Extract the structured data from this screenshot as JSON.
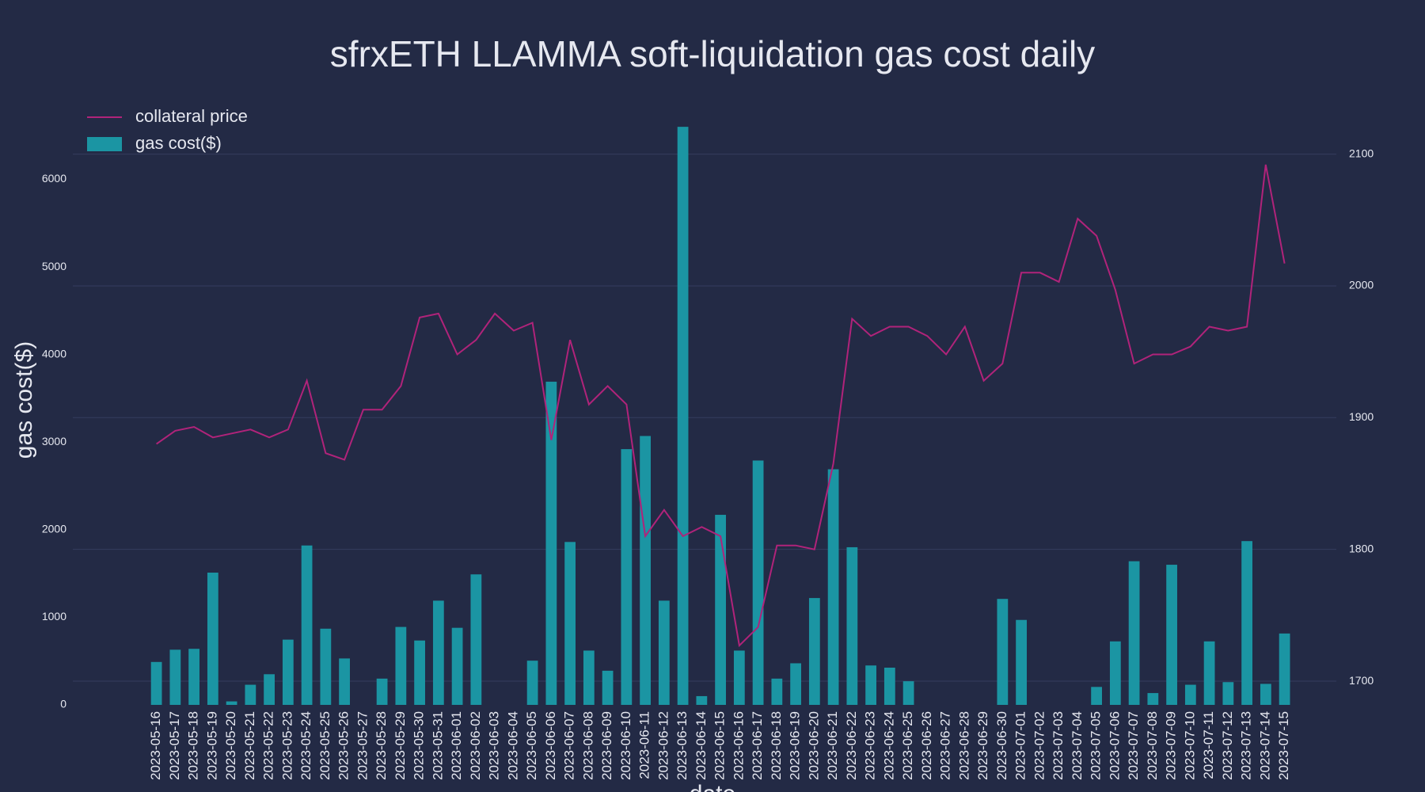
{
  "chart_data": {
    "type": "bar",
    "title": "sfrxETH LLAMMA soft-liquidation gas cost daily",
    "x_title": "date",
    "y_title": "gas cost($)",
    "categories": [
      "2023-05-16",
      "2023-05-17",
      "2023-05-18",
      "2023-05-19",
      "2023-05-20",
      "2023-05-21",
      "2023-05-22",
      "2023-05-23",
      "2023-05-24",
      "2023-05-25",
      "2023-05-26",
      "2023-05-27",
      "2023-05-28",
      "2023-05-29",
      "2023-05-30",
      "2023-05-31",
      "2023-06-01",
      "2023-06-02",
      "2023-06-03",
      "2023-06-04",
      "2023-06-05",
      "2023-06-06",
      "2023-06-07",
      "2023-06-08",
      "2023-06-09",
      "2023-06-10",
      "2023-06-11",
      "2023-06-12",
      "2023-06-13",
      "2023-06-14",
      "2023-06-15",
      "2023-06-16",
      "2023-06-17",
      "2023-06-18",
      "2023-06-19",
      "2023-06-20",
      "2023-06-21",
      "2023-06-22",
      "2023-06-23",
      "2023-06-24",
      "2023-06-25",
      "2023-06-26",
      "2023-06-27",
      "2023-06-28",
      "2023-06-29",
      "2023-06-30",
      "2023-07-01",
      "2023-07-02",
      "2023-07-03",
      "2023-07-04",
      "2023-07-05",
      "2023-07-06",
      "2023-07-07",
      "2023-07-08",
      "2023-07-09",
      "2023-07-10",
      "2023-07-11",
      "2023-07-12",
      "2023-07-13",
      "2023-07-14",
      "2023-07-15"
    ],
    "series": [
      {
        "name": "collateral price",
        "type": "line",
        "axis": "y2",
        "color": "#b0237a",
        "values": [
          1880,
          1890,
          1893,
          1885,
          1888,
          1891,
          1885,
          1891,
          1928,
          1873,
          1868,
          1906,
          1906,
          1924,
          1976,
          1979,
          1948,
          1959,
          1979,
          1966,
          1972,
          1883,
          1959,
          1910,
          1924,
          1910,
          1810,
          1830,
          1810,
          1817,
          1810,
          1727,
          1741,
          1803,
          1803,
          1800,
          1865,
          1975,
          1962,
          1969,
          1969,
          1962,
          1948,
          1969,
          1928,
          1941,
          2010,
          2010,
          2003,
          2051,
          2038,
          1997,
          1941,
          1948,
          1948,
          1954,
          1969,
          1966,
          1969,
          2092,
          2017
        ]
      },
      {
        "name": "gas cost($)",
        "type": "bar",
        "color": "#1b95a3",
        "values": [
          490,
          630,
          640,
          1510,
          40,
          230,
          350,
          745,
          1820,
          870,
          530,
          0,
          300,
          890,
          735,
          1190,
          880,
          1490,
          0,
          0,
          505,
          3690,
          1860,
          620,
          390,
          2920,
          3070,
          1190,
          6600,
          100,
          2170,
          620,
          2790,
          300,
          475,
          1220,
          2690,
          1800,
          450,
          425,
          270,
          0,
          0,
          0,
          0,
          1210,
          970,
          0,
          0,
          0,
          205,
          725,
          1640,
          135,
          1600,
          230,
          725,
          260,
          1870,
          240,
          815
        ]
      }
    ],
    "ylim": [
      0,
      6800
    ],
    "yticks": [
      0,
      1000,
      2000,
      3000,
      4000,
      5000,
      6000
    ],
    "y2lim": [
      1682,
      2134
    ],
    "y2ticks": [
      1700,
      1800,
      1900,
      2000,
      2100
    ],
    "grid": "y2",
    "legend": "upper left"
  }
}
